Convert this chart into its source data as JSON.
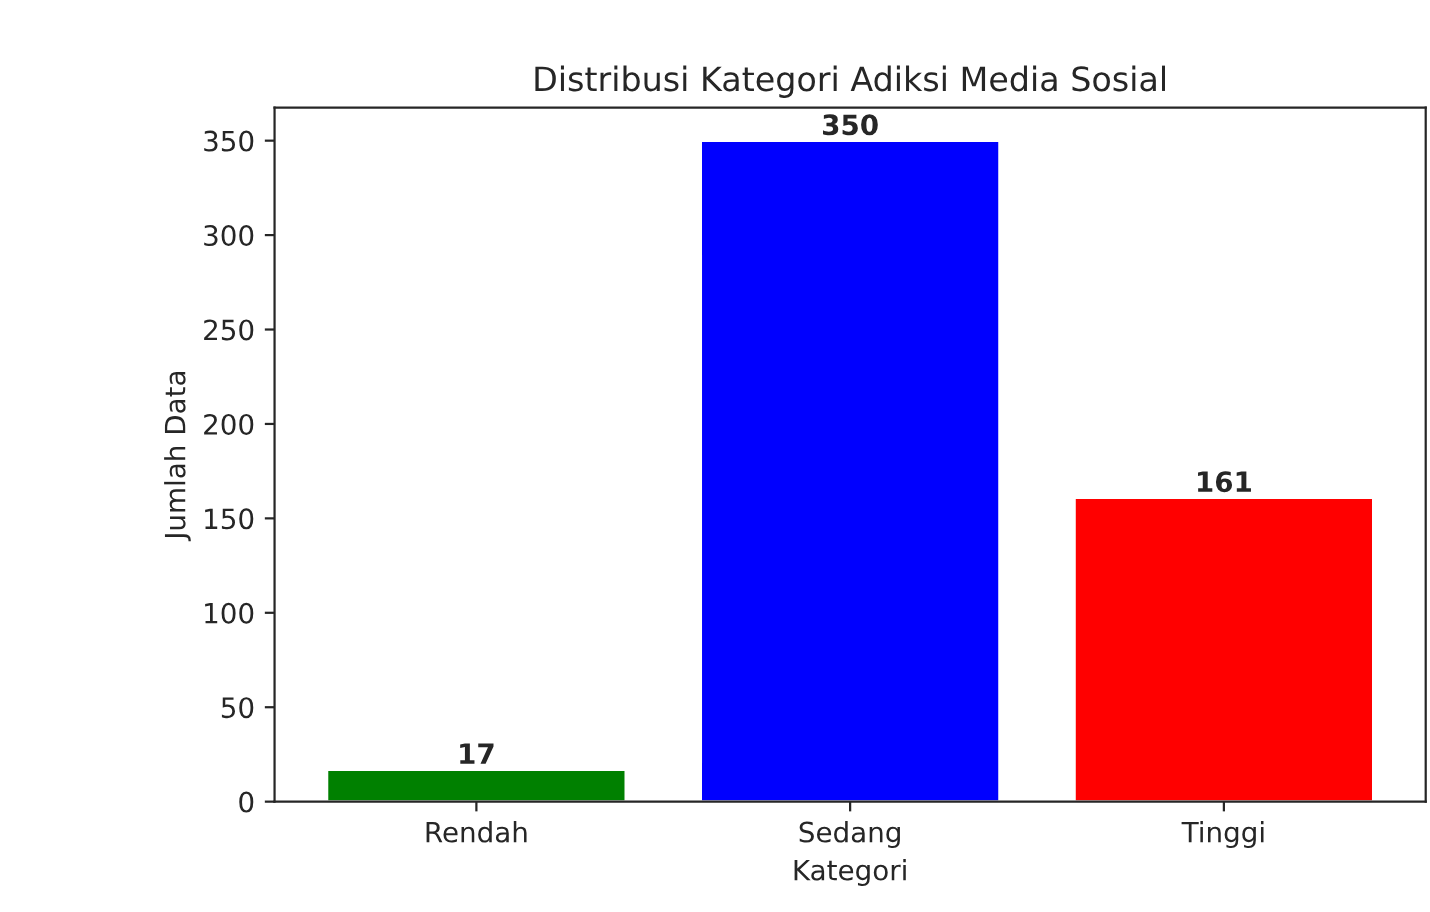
{
  "chart_data": {
    "type": "bar",
    "title": "Distribusi Kategori Adiksi Media Sosial",
    "xlabel": "Kategori",
    "ylabel": "Jumlah Data",
    "categories": [
      "Rendah",
      "Sedang",
      "Tinggi"
    ],
    "values": [
      17,
      350,
      161
    ],
    "colors": [
      "#008000",
      "#0000ff",
      "#ff0000"
    ],
    "ylim": [
      0,
      367.5
    ],
    "yticks": [
      0,
      50,
      100,
      150,
      200,
      250,
      300,
      350
    ],
    "data_labels": true,
    "grid": false,
    "legend": false
  }
}
